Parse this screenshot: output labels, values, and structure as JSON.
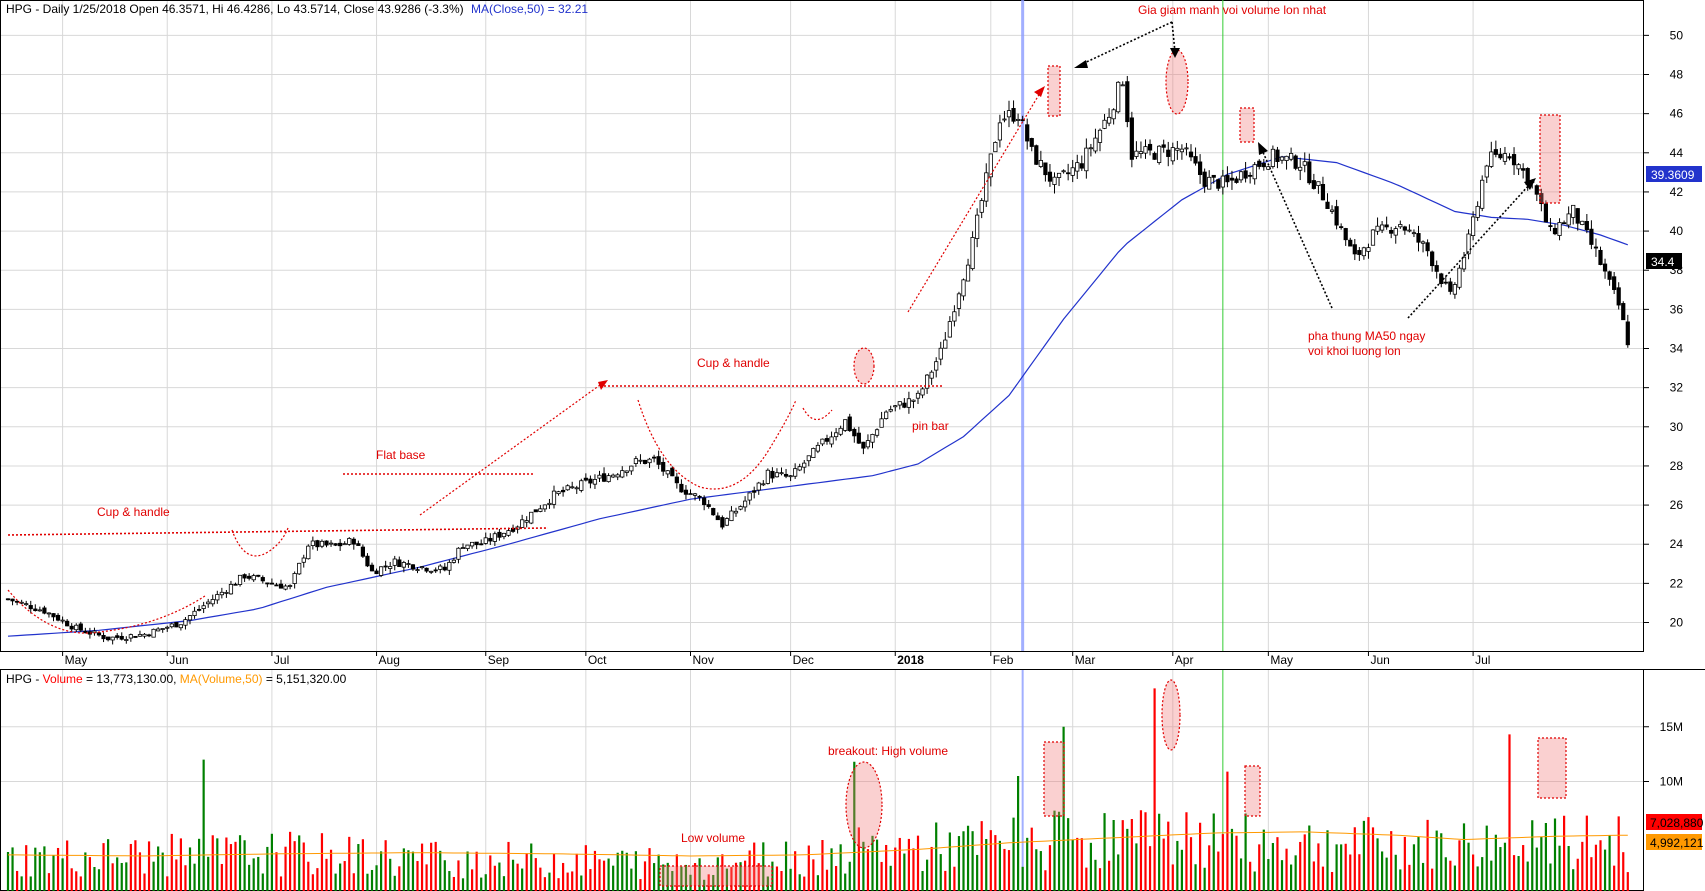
{
  "price_header": {
    "symbol_line": "HPG - Daily 1/25/2018 Open 46.3571, Hi 46.4286, Lo 43.5714, Close 43.9286 (-3.3%)",
    "ma_label": "MA(Close,50) = 32.21"
  },
  "volume_header": {
    "symbol_text": "HPG - ",
    "vol_label": "Volume",
    "vol_value": " = 13,773,130.00, ",
    "ma_label": "MA(Volume,50)",
    "ma_value": " = 5,151,320.00"
  },
  "annotations": {
    "gia_giam": "Gia giam manh voi volume lon nhat",
    "cup_handle_2": "Cup & handle",
    "flat_base": "Flat base",
    "cup_handle_1": "Cup & handle",
    "pin_bar": "pin bar",
    "pha_thung_1": "pha thung MA50 ngay",
    "pha_thung_2": "voi khoi luong lon",
    "breakout": "breakout: High volume",
    "low_volume": "Low volume"
  },
  "colors": {
    "up": "#008000",
    "down": "#ff0000",
    "ma_price": "#2233cc",
    "ma_volume": "#ff9900",
    "annotation": "#e00000",
    "grid": "#d8d8d8",
    "cursor": "#8c9cff",
    "green_line": "#33cc33"
  },
  "chart_data": [
    {
      "type": "candlestick",
      "title": "HPG - Daily",
      "ylim": [
        18.8,
        51.5
      ],
      "yticks": [
        20,
        22,
        24,
        26,
        28,
        30,
        32,
        34,
        36,
        38,
        40,
        42,
        44,
        46,
        48,
        50
      ],
      "ytick_labels": [
        "20",
        "22",
        "24",
        "26",
        "28",
        "30",
        "32",
        "34",
        "36",
        "38",
        "40",
        "42",
        "44",
        "46",
        "48",
        "50"
      ],
      "x_labels": [
        "May",
        "Jun",
        "Jul",
        "Aug",
        "Sep",
        "Oct",
        "Nov",
        "Dec",
        "2018",
        "Feb",
        "Mar",
        "Apr",
        "May",
        "Jun",
        "Jul"
      ],
      "price_path": [
        [
          0,
          21.2
        ],
        [
          8,
          20.6
        ],
        [
          15,
          19.7
        ],
        [
          22,
          19.2
        ],
        [
          30,
          19.4
        ],
        [
          38,
          20.0
        ],
        [
          45,
          21.2
        ],
        [
          52,
          22.4
        ],
        [
          58,
          22.0
        ],
        [
          62,
          21.8
        ],
        [
          66,
          24.0
        ],
        [
          72,
          23.9
        ],
        [
          76,
          24.2
        ],
        [
          80,
          22.6
        ],
        [
          85,
          23.1
        ],
        [
          92,
          22.8
        ],
        [
          96,
          22.7
        ],
        [
          100,
          24.0
        ],
        [
          104,
          24.0
        ],
        [
          112,
          25.0
        ],
        [
          120,
          26.5
        ],
        [
          128,
          27.2
        ],
        [
          133,
          27.6
        ],
        [
          138,
          28.2
        ],
        [
          142,
          28.3
        ],
        [
          147,
          27.0
        ],
        [
          153,
          26.2
        ],
        [
          157,
          25.0
        ],
        [
          162,
          26.2
        ],
        [
          167,
          27.6
        ],
        [
          172,
          27.4
        ],
        [
          178,
          28.9
        ],
        [
          184,
          30.3
        ],
        [
          188,
          28.8
        ],
        [
          193,
          30.8
        ],
        [
          200,
          31.5
        ],
        [
          205,
          33.8
        ],
        [
          212,
          39.4
        ],
        [
          218,
          45.8
        ],
        [
          222,
          46.0
        ],
        [
          225,
          44.0
        ],
        [
          230,
          42.4
        ],
        [
          236,
          43.5
        ],
        [
          242,
          46.0
        ],
        [
          245,
          47.8
        ],
        [
          247,
          43.9
        ],
        [
          252,
          44.0
        ],
        [
          258,
          44.2
        ],
        [
          263,
          42.6
        ],
        [
          268,
          42.4
        ],
        [
          273,
          43.2
        ],
        [
          278,
          43.8
        ],
        [
          284,
          43.5
        ],
        [
          290,
          41.5
        ],
        [
          296,
          38.6
        ],
        [
          300,
          39.8
        ],
        [
          306,
          40.4
        ],
        [
          312,
          39.0
        ],
        [
          317,
          36.6
        ],
        [
          321,
          39.5
        ],
        [
          325,
          43.6
        ],
        [
          330,
          44.0
        ],
        [
          335,
          42.4
        ],
        [
          339,
          39.9
        ],
        [
          344,
          41.0
        ],
        [
          349,
          38.9
        ],
        [
          354,
          36.2
        ],
        [
          356,
          34.4
        ]
      ],
      "ma50_path": [
        [
          0,
          19.3
        ],
        [
          20,
          19.6
        ],
        [
          40,
          20.1
        ],
        [
          55,
          20.7
        ],
        [
          70,
          21.8
        ],
        [
          90,
          22.8
        ],
        [
          110,
          24.0
        ],
        [
          130,
          25.3
        ],
        [
          150,
          26.3
        ],
        [
          170,
          26.9
        ],
        [
          190,
          27.5
        ],
        [
          200,
          28.1
        ],
        [
          210,
          29.5
        ],
        [
          220,
          31.6
        ],
        [
          232,
          35.5
        ],
        [
          245,
          39.2
        ],
        [
          258,
          41.6
        ],
        [
          268,
          42.9
        ],
        [
          280,
          43.8
        ],
        [
          292,
          43.5
        ],
        [
          305,
          42.4
        ],
        [
          318,
          41.0
        ],
        [
          326,
          40.7
        ],
        [
          334,
          40.6
        ],
        [
          342,
          40.3
        ],
        [
          350,
          39.8
        ],
        [
          356,
          39.3
        ]
      ],
      "events": {
        "cursor_bar": 223,
        "green_line_bar": 267
      },
      "last_labels": {
        "ma50": "39.3609",
        "close": "34.4"
      }
    },
    {
      "type": "bar",
      "title": "HPG - Volume",
      "ylim": [
        0,
        20000000
      ],
      "yticks": [
        10000000,
        15000000
      ],
      "ytick_labels": [
        "10M",
        "15M"
      ],
      "volume_level_path": [
        [
          0,
          3.3
        ],
        [
          60,
          3.8
        ],
        [
          100,
          3.2
        ],
        [
          150,
          2.8
        ],
        [
          185,
          4.0
        ],
        [
          215,
          4.6
        ],
        [
          235,
          5.3
        ],
        [
          255,
          5.2
        ],
        [
          270,
          4.9
        ],
        [
          300,
          4.7
        ],
        [
          320,
          4.6
        ],
        [
          340,
          4.8
        ],
        [
          356,
          4.9
        ]
      ],
      "volume_ma50_path": [
        [
          0,
          3.3
        ],
        [
          30,
          3.2
        ],
        [
          60,
          3.4
        ],
        [
          90,
          3.5
        ],
        [
          120,
          3.4
        ],
        [
          150,
          3.2
        ],
        [
          175,
          3.3
        ],
        [
          200,
          3.8
        ],
        [
          220,
          4.4
        ],
        [
          245,
          4.9
        ],
        [
          265,
          5.3
        ],
        [
          285,
          5.4
        ],
        [
          305,
          5.1
        ],
        [
          320,
          4.7
        ],
        [
          340,
          5.0
        ],
        [
          356,
          5.1
        ]
      ],
      "spikes": [
        {
          "bar": 43,
          "value": 12.0
        },
        {
          "bar": 186,
          "value": 11.8
        },
        {
          "bar": 222,
          "value": 10.5
        },
        {
          "bar": 232,
          "value": 15.0
        },
        {
          "bar": 252,
          "value": 18.5
        },
        {
          "bar": 268,
          "value": 10.9
        },
        {
          "bar": 330,
          "value": 14.3
        }
      ],
      "last_labels": {
        "volume": "7,028,880",
        "ma50": "4,992,121"
      }
    }
  ]
}
